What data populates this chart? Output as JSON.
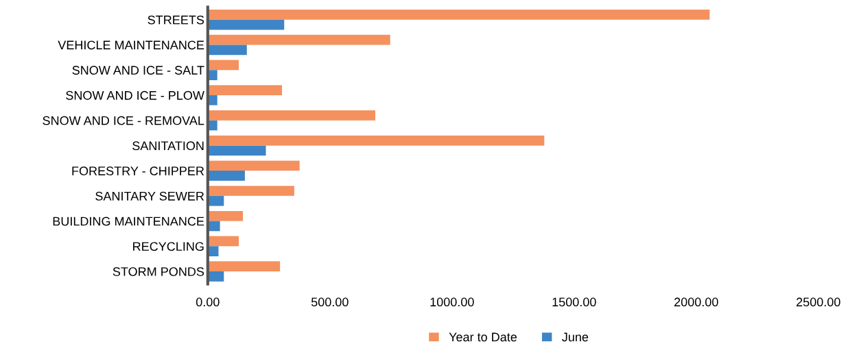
{
  "chart_data": {
    "type": "bar",
    "orientation": "horizontal",
    "categories": [
      "STREETS",
      "VEHICLE MAINTENANCE",
      "SNOW AND ICE - SALT",
      "SNOW AND ICE - PLOW",
      "SNOW AND ICE - REMOVAL",
      "SANITATION",
      "FORESTRY - CHIPPER",
      "SANITARY SEWER",
      "BUILDING MAINTENANCE",
      "RECYCLING",
      "STORM PONDS"
    ],
    "series": [
      {
        "name": "Year to Date",
        "color": "#f4915e",
        "values": [
          2055,
          747,
          127,
          304,
          686,
          1378,
          376,
          354,
          144,
          127,
          296
        ]
      },
      {
        "name": "June",
        "color": "#3d85c6",
        "values": [
          313,
          160,
          39,
          39,
          39,
          238,
          152,
          66,
          50,
          44,
          66
        ]
      }
    ],
    "xlim": [
      0,
      2500
    ],
    "xticks": [
      {
        "value": 0,
        "label": "0.00"
      },
      {
        "value": 500,
        "label": "500.00"
      },
      {
        "value": 1000,
        "label": "1000.00"
      },
      {
        "value": 1500,
        "label": "1500.00"
      },
      {
        "value": 2000,
        "label": "2000.00"
      },
      {
        "value": 2500,
        "label": "2500.00"
      }
    ],
    "grid": false,
    "legend": "bottom"
  }
}
